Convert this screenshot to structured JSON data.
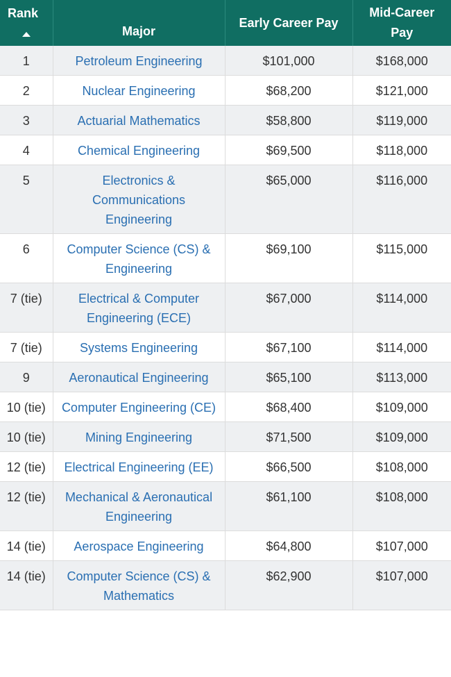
{
  "table": {
    "headers": {
      "rank": "Rank",
      "major": "Major",
      "early_pay": "Early Career Pay",
      "mid_pay": "Mid-Career Pay"
    },
    "sort_indicator": "sort-ascending-icon",
    "rows": [
      {
        "rank": "1",
        "major": "Petroleum Engineering",
        "early": "$101,000",
        "mid": "$168,000"
      },
      {
        "rank": "2",
        "major": "Nuclear Engineering",
        "early": "$68,200",
        "mid": "$121,000"
      },
      {
        "rank": "3",
        "major": "Actuarial Mathematics",
        "early": "$58,800",
        "mid": "$119,000"
      },
      {
        "rank": "4",
        "major": "Chemical Engineering",
        "early": "$69,500",
        "mid": "$118,000"
      },
      {
        "rank": "5",
        "major": "Electronics & Communications Engineering",
        "early": "$65,000",
        "mid": "$116,000"
      },
      {
        "rank": "6",
        "major": "Computer Science (CS) & Engineering",
        "early": "$69,100",
        "mid": "$115,000"
      },
      {
        "rank": "7 (tie)",
        "major": "Electrical & Computer Engineering (ECE)",
        "early": "$67,000",
        "mid": "$114,000"
      },
      {
        "rank": "7 (tie)",
        "major": "Systems Engineering",
        "early": "$67,100",
        "mid": "$114,000"
      },
      {
        "rank": "9",
        "major": "Aeronautical Engineering",
        "early": "$65,100",
        "mid": "$113,000"
      },
      {
        "rank": "10 (tie)",
        "major": "Computer Engineering (CE)",
        "early": "$68,400",
        "mid": "$109,000"
      },
      {
        "rank": "10 (tie)",
        "major": "Mining Engineering",
        "early": "$71,500",
        "mid": "$109,000"
      },
      {
        "rank": "12 (tie)",
        "major": "Electrical Engineering (EE)",
        "early": "$66,500",
        "mid": "$108,000"
      },
      {
        "rank": "12 (tie)",
        "major": "Mechanical & Aeronautical Engineering",
        "early": "$61,100",
        "mid": "$108,000"
      },
      {
        "rank": "14 (tie)",
        "major": "Aerospace Engineering",
        "early": "$64,800",
        "mid": "$107,000"
      },
      {
        "rank": "14 (tie)",
        "major": "Computer Science (CS) & Mathematics",
        "early": "$62,900",
        "mid": "$107,000"
      }
    ]
  },
  "colors": {
    "header_bg": "#106e62",
    "header_text": "#ffffff",
    "major_link": "#2a6fb2",
    "stripe": "#eef0f2",
    "body_text": "#333333"
  }
}
